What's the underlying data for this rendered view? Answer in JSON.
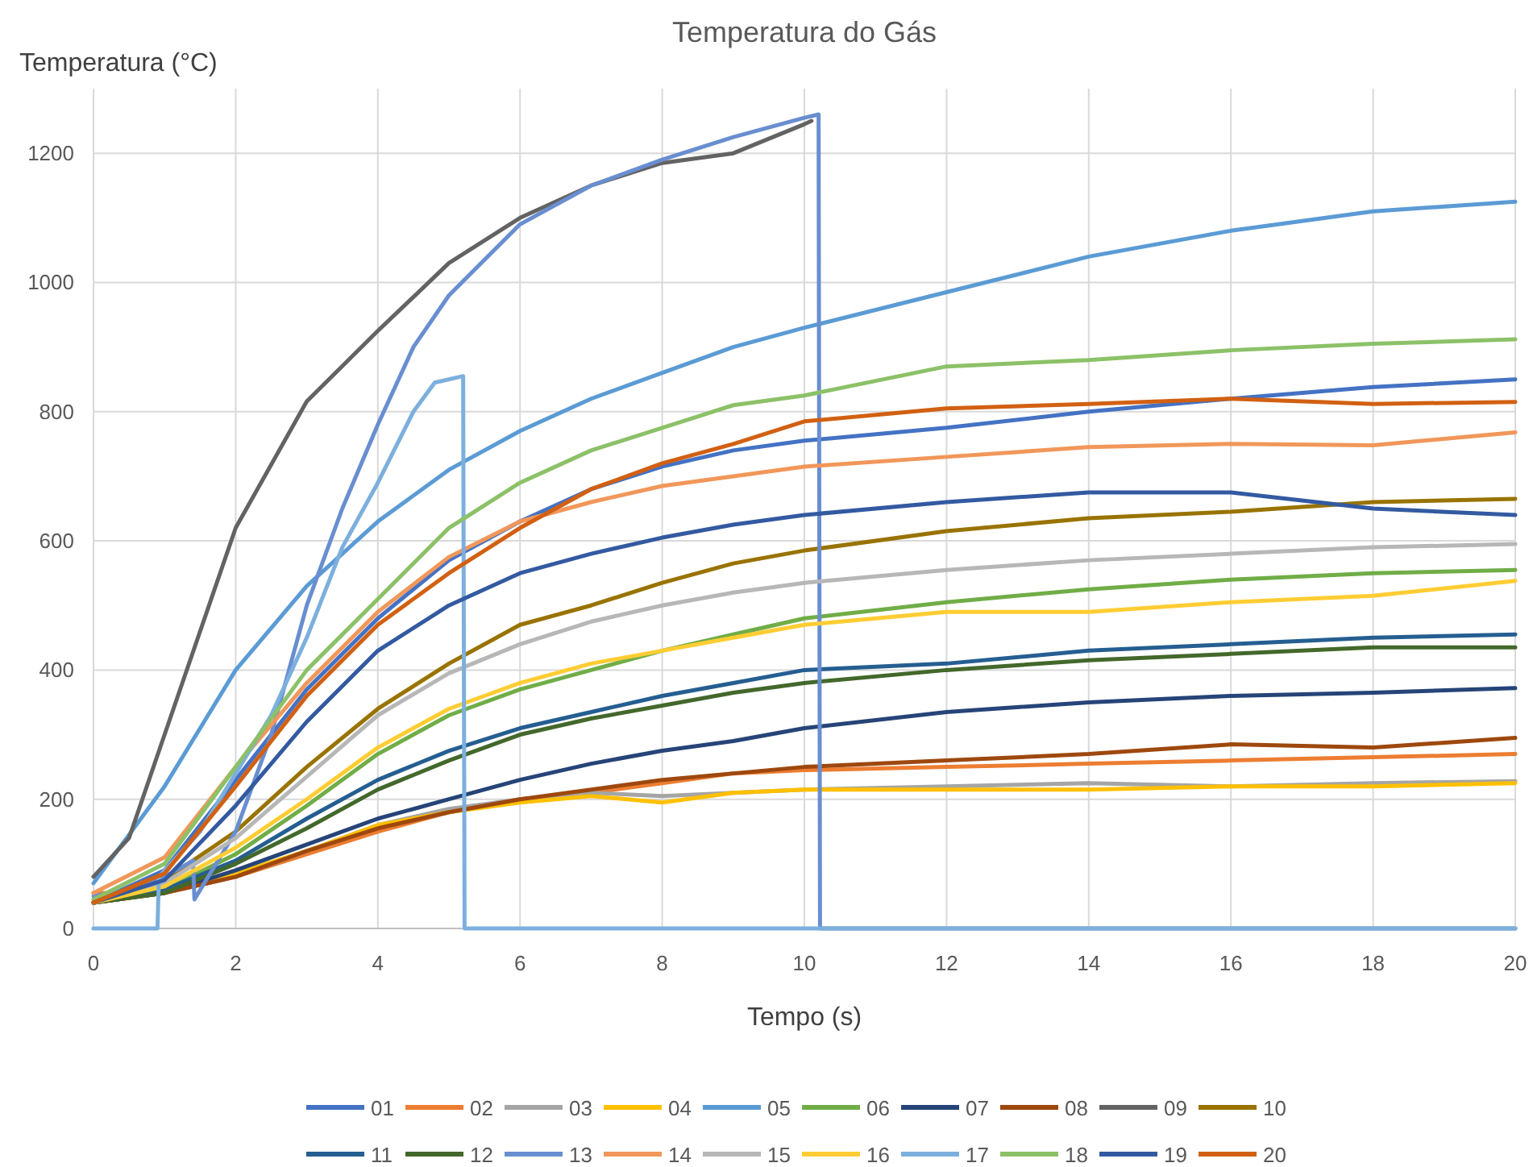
{
  "chart_data": {
    "type": "line",
    "title": "Temperatura do Gás",
    "xlabel": "Tempo (s)",
    "ylabel": "Temperatura (°C)",
    "x": [
      0,
      1,
      2,
      3,
      4,
      5,
      6,
      7,
      8,
      9,
      10,
      12,
      14,
      16,
      18,
      20
    ],
    "xlim": [
      0,
      20
    ],
    "xticks": [
      0,
      2,
      4,
      6,
      8,
      10,
      12,
      14,
      16,
      18,
      20
    ],
    "ylim": [
      0,
      1300
    ],
    "yticks": [
      0,
      200,
      400,
      600,
      800,
      1000,
      1200
    ],
    "grid": true,
    "legend": "bottom",
    "series": [
      {
        "name": "01",
        "color": "#4472c4",
        "values": [
          40,
          90,
          230,
          370,
          480,
          570,
          630,
          680,
          715,
          740,
          755,
          775,
          800,
          820,
          838,
          850
        ]
      },
      {
        "name": "02",
        "color": "#ed7d31",
        "values": [
          55,
          55,
          80,
          115,
          150,
          180,
          200,
          210,
          225,
          240,
          245,
          250,
          255,
          260,
          265,
          270
        ]
      },
      {
        "name": "03",
        "color": "#a5a5a5",
        "values": [
          40,
          55,
          80,
          120,
          160,
          185,
          200,
          210,
          205,
          210,
          215,
          220,
          225,
          220,
          225,
          228
        ]
      },
      {
        "name": "04",
        "color": "#ffc000",
        "values": [
          40,
          55,
          85,
          120,
          160,
          180,
          195,
          205,
          195,
          210,
          215,
          215,
          215,
          220,
          220,
          225
        ]
      },
      {
        "name": "05",
        "color": "#5b9bd5",
        "values": [
          70,
          220,
          400,
          530,
          630,
          710,
          770,
          820,
          860,
          900,
          930,
          985,
          1040,
          1080,
          1110,
          1125
        ]
      },
      {
        "name": "06",
        "color": "#70ad47",
        "values": [
          40,
          60,
          115,
          190,
          270,
          330,
          370,
          400,
          430,
          455,
          480,
          505,
          525,
          540,
          550,
          555
        ]
      },
      {
        "name": "07",
        "color": "#264478",
        "values": [
          40,
          55,
          90,
          130,
          170,
          200,
          230,
          255,
          275,
          290,
          310,
          335,
          350,
          360,
          365,
          372
        ]
      },
      {
        "name": "08",
        "color": "#9e480e",
        "values": [
          40,
          55,
          80,
          120,
          155,
          180,
          200,
          215,
          230,
          240,
          250,
          260,
          270,
          285,
          280,
          295
        ]
      },
      {
        "name": "09",
        "color": "#636363",
        "x": [
          0,
          0.5,
          1,
          2,
          3,
          4,
          5,
          6,
          7,
          8,
          9,
          10,
          10.1
        ],
        "values": [
          80,
          140,
          300,
          620,
          816,
          925,
          1030,
          1100,
          1150,
          1185,
          1200,
          1245,
          1250
        ]
      },
      {
        "name": "10",
        "color": "#997300",
        "values": [
          40,
          75,
          150,
          250,
          340,
          410,
          470,
          500,
          535,
          565,
          585,
          615,
          635,
          645,
          660,
          665
        ]
      },
      {
        "name": "11",
        "color": "#255e91",
        "values": [
          40,
          60,
          105,
          170,
          230,
          275,
          310,
          335,
          360,
          380,
          400,
          410,
          430,
          440,
          450,
          455
        ]
      },
      {
        "name": "12",
        "color": "#43682b",
        "values": [
          40,
          55,
          100,
          155,
          215,
          260,
          300,
          325,
          345,
          365,
          380,
          400,
          415,
          425,
          435,
          435
        ]
      },
      {
        "name": "13",
        "color": "#698ed0",
        "x": [
          0,
          0.5,
          1,
          1.4,
          1.42,
          2,
          2.5,
          3,
          3.5,
          4,
          4.5,
          5,
          6,
          7,
          8,
          9,
          10,
          10.2,
          10.22,
          20
        ],
        "values": [
          50,
          60,
          80,
          105,
          45,
          150,
          300,
          500,
          650,
          780,
          900,
          980,
          1090,
          1150,
          1190,
          1225,
          1255,
          1260,
          0,
          0
        ]
      },
      {
        "name": "14",
        "color": "#f1975a",
        "values": [
          55,
          110,
          250,
          380,
          490,
          575,
          630,
          660,
          685,
          700,
          715,
          730,
          745,
          750,
          748,
          768
        ]
      },
      {
        "name": "15",
        "color": "#b7b7b7",
        "values": [
          40,
          70,
          140,
          235,
          330,
          395,
          440,
          475,
          500,
          520,
          535,
          555,
          570,
          580,
          590,
          595
        ]
      },
      {
        "name": "16",
        "color": "#ffcd33",
        "values": [
          40,
          65,
          125,
          200,
          280,
          340,
          380,
          410,
          430,
          450,
          470,
          490,
          490,
          505,
          515,
          538
        ]
      },
      {
        "name": "17",
        "color": "#7cafdd",
        "x": [
          0,
          0.9,
          0.92,
          1.5,
          2,
          2.5,
          3,
          3.5,
          4,
          4.5,
          4.8,
          5.2,
          5.22,
          20
        ],
        "values": [
          0,
          0,
          80,
          150,
          240,
          330,
          450,
          590,
          690,
          800,
          845,
          855,
          0,
          0
        ]
      },
      {
        "name": "18",
        "color": "#8cc168",
        "values": [
          45,
          100,
          250,
          400,
          510,
          620,
          690,
          740,
          775,
          810,
          825,
          870,
          880,
          895,
          905,
          912
        ]
      },
      {
        "name": "19",
        "color": "#335aa1",
        "values": [
          40,
          75,
          190,
          320,
          430,
          500,
          550,
          580,
          605,
          625,
          640,
          660,
          675,
          675,
          650,
          640
        ]
      },
      {
        "name": "20",
        "color": "#d26012",
        "values": [
          40,
          85,
          220,
          360,
          470,
          550,
          620,
          680,
          720,
          750,
          785,
          805,
          812,
          820,
          812,
          815
        ]
      }
    ]
  }
}
